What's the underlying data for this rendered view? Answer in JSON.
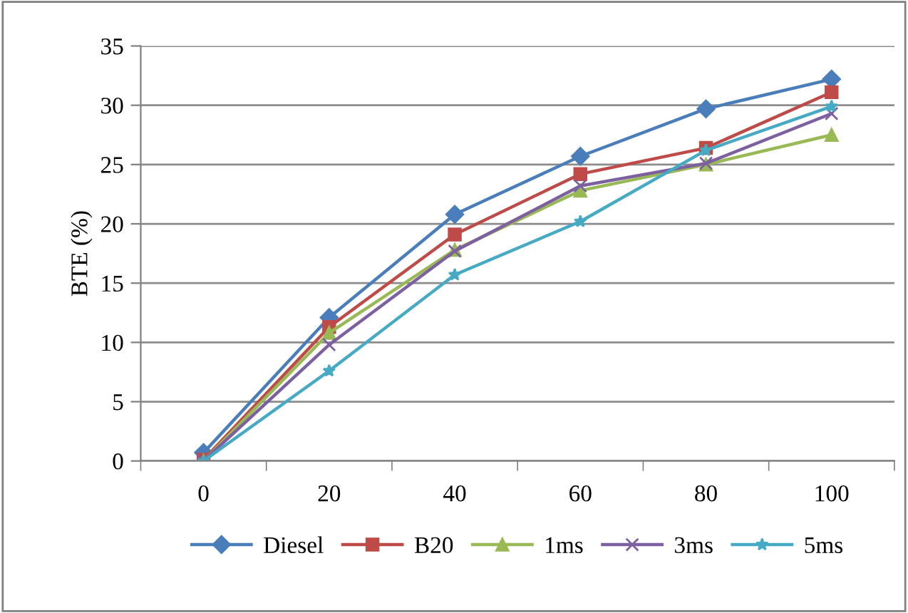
{
  "chart_data": {
    "type": "line",
    "ylabel": "BTE (%)",
    "categories": [
      "0",
      "20",
      "40",
      "60",
      "80",
      "100"
    ],
    "ylim": [
      0,
      35
    ],
    "yticks": [
      0,
      5,
      10,
      15,
      20,
      25,
      30,
      35
    ],
    "grid": "y",
    "legend": "bottom",
    "series": [
      {
        "name": "Diesel",
        "color": "#4a7ebb",
        "marker": "diamond",
        "values": [
          0.7,
          12.1,
          20.8,
          25.7,
          29.7,
          32.2
        ]
      },
      {
        "name": "B20",
        "color": "#be4b48",
        "marker": "square",
        "values": [
          0.1,
          11.3,
          19.1,
          24.2,
          26.4,
          31.1
        ]
      },
      {
        "name": "1ms",
        "color": "#98b954",
        "marker": "triangle",
        "values": [
          0,
          10.8,
          17.8,
          22.8,
          25.0,
          27.5
        ]
      },
      {
        "name": "3ms",
        "color": "#7d60a0",
        "marker": "cross",
        "values": [
          0,
          9.8,
          17.7,
          23.2,
          25.1,
          29.3
        ]
      },
      {
        "name": "5ms",
        "color": "#46aac5",
        "marker": "star",
        "values": [
          0,
          7.6,
          15.7,
          20.2,
          26.2,
          29.9
        ]
      }
    ]
  }
}
